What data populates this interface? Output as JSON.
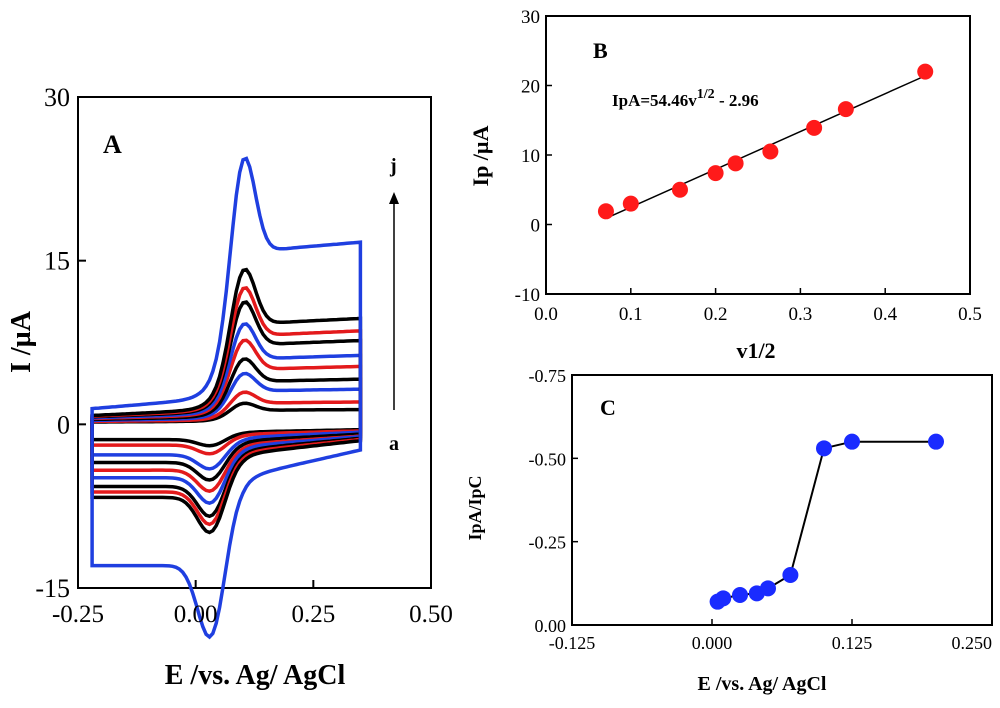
{
  "chart_data": [
    {
      "type": "line",
      "panel": "A",
      "xlabel": "E /vs. Ag/ AgCl",
      "ylabel": "I /µA",
      "xlim": [
        -0.25,
        0.5
      ],
      "ylim": [
        -15,
        30
      ],
      "xticks": [
        "-0.25",
        "0.00",
        "0.25",
        "0.50"
      ],
      "yticks": [
        "-15",
        "0",
        "15",
        "30"
      ],
      "annotations": {
        "start_label": "a",
        "end_label": "j"
      },
      "series_colors": [
        "#000000",
        "#e31a1c",
        "#1f3fe0",
        "#000000",
        "#e31a1c",
        "#1f3fe0",
        "#000000",
        "#e31a1c",
        "#000000",
        "#1f3fe0"
      ],
      "series": [
        {
          "color": "#000000",
          "ipa": 1.8,
          "ipc": 1.4,
          "offset": 0.7
        },
        {
          "color": "#e31a1c",
          "ipa": 2.8,
          "ipc": 2.0,
          "offset": 0.9
        },
        {
          "color": "#1f3fe0",
          "ipa": 4.5,
          "ipc": 3.2,
          "offset": 1.2
        },
        {
          "color": "#000000",
          "ipa": 5.8,
          "ipc": 4.0,
          "offset": 1.5
        },
        {
          "color": "#e31a1c",
          "ipa": 7.5,
          "ipc": 4.8,
          "offset": 1.8
        },
        {
          "color": "#1f3fe0",
          "ipa": 9.0,
          "ipc": 5.8,
          "offset": 2.0
        },
        {
          "color": "#000000",
          "ipa": 11.0,
          "ipc": 6.8,
          "offset": 2.3
        },
        {
          "color": "#e31a1c",
          "ipa": 12.3,
          "ipc": 7.4,
          "offset": 2.5
        },
        {
          "color": "#000000",
          "ipa": 14.0,
          "ipc": 8.0,
          "offset": 2.7
        },
        {
          "color": "#1f3fe0",
          "ipa": 24.0,
          "ipc": 16.3,
          "offset": 4.8
        }
      ]
    },
    {
      "type": "scatter",
      "panel": "B",
      "xlabel": "v1/2",
      "ylabel": "Ip /µA",
      "xlim": [
        0.0,
        0.5
      ],
      "ylim": [
        -10,
        30
      ],
      "xticks": [
        "0.0",
        "0.1",
        "0.2",
        "0.3",
        "0.4",
        "0.5"
      ],
      "yticks": [
        "-10",
        "0",
        "10",
        "20",
        "30"
      ],
      "equation": "IpA=54.46v",
      "equation_sup": "1/2",
      "equation_tail": " - 2.96",
      "fit": {
        "slope": 54.46,
        "intercept": -2.96
      },
      "marker_color": "#ff1a1a",
      "points": [
        [
          0.0707,
          1.9
        ],
        [
          0.1,
          3.0
        ],
        [
          0.158,
          5.0
        ],
        [
          0.2,
          7.4
        ],
        [
          0.2236,
          8.8
        ],
        [
          0.2646,
          10.5
        ],
        [
          0.3162,
          13.9
        ],
        [
          0.3536,
          16.6
        ],
        [
          0.4472,
          22.0
        ]
      ]
    },
    {
      "type": "line",
      "panel": "C",
      "xlabel": "E /vs. Ag/ AgCl",
      "ylabel": "IpA/IpC",
      "xlim": [
        -0.125,
        0.25
      ],
      "ylim": [
        0.0,
        -0.75
      ],
      "xticks": [
        "-0.125",
        "0.000",
        "0.125",
        "0.250"
      ],
      "yticks": [
        "0.00",
        "-0.25",
        "-0.50",
        "-0.75"
      ],
      "marker_color": "#1a2bff",
      "points": [
        [
          0.005,
          -0.07
        ],
        [
          0.01,
          -0.08
        ],
        [
          0.025,
          -0.09
        ],
        [
          0.04,
          -0.095
        ],
        [
          0.05,
          -0.11
        ],
        [
          0.07,
          -0.15
        ],
        [
          0.1,
          -0.53
        ],
        [
          0.125,
          -0.55
        ],
        [
          0.2,
          -0.55
        ]
      ]
    }
  ]
}
